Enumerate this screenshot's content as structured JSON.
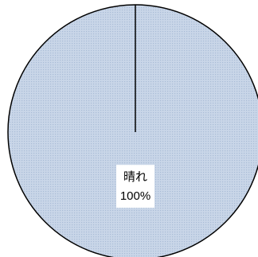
{
  "chart_data": {
    "type": "pie",
    "categories": [
      "晴れ"
    ],
    "values": [
      100
    ],
    "percent_labels": [
      "100%"
    ],
    "title": "",
    "legend": "none",
    "colors": {
      "slice_fill": "#c9d6e8",
      "slice_texture": "#a9bcd6",
      "slice_stroke": "#000000",
      "label_background": "#ffffff"
    }
  }
}
